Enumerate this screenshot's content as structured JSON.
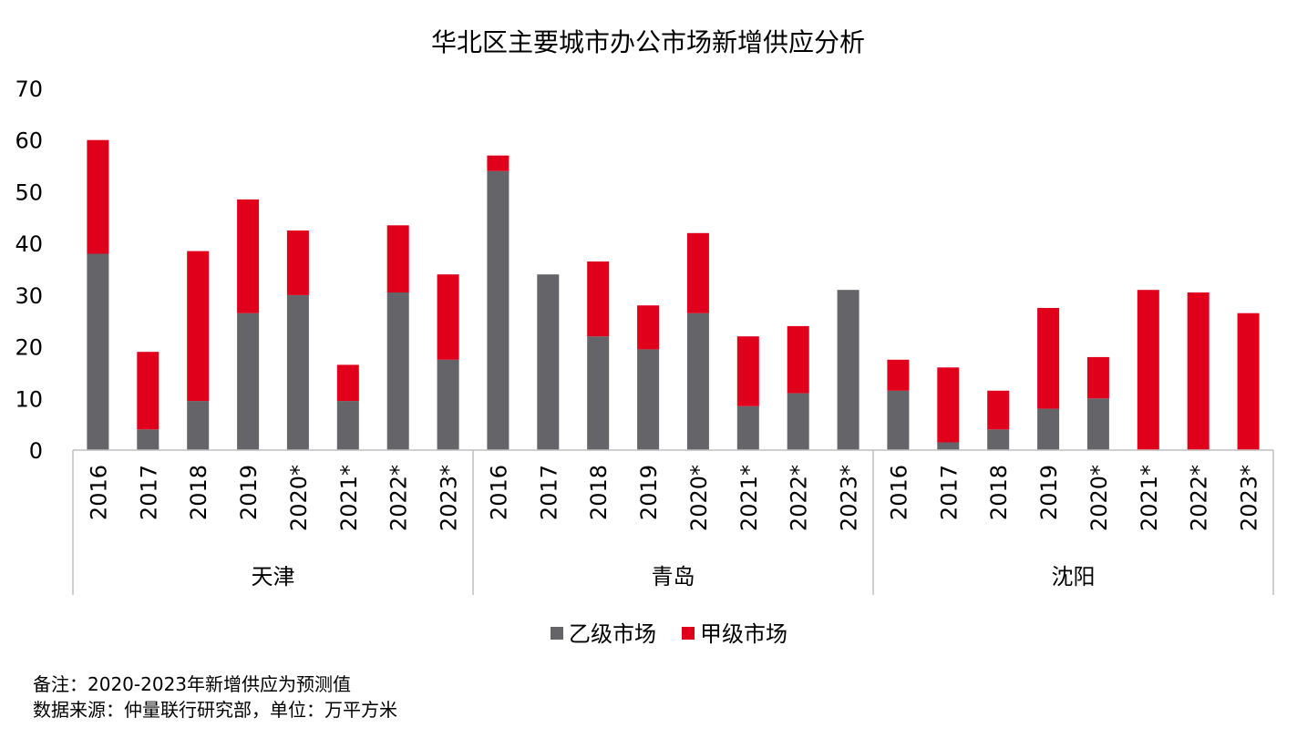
{
  "chart_data": {
    "type": "bar",
    "stacked": true,
    "title": "华北区主要城市办公市场新增供应分析",
    "xlabel": "",
    "ylabel": "",
    "ylim": [
      0,
      70
    ],
    "yticks": [
      0,
      10,
      20,
      30,
      40,
      50,
      60,
      70
    ],
    "grid": false,
    "legend_position": "bottom",
    "groups": [
      {
        "name": "天津",
        "categories": [
          "2016",
          "2017",
          "2018",
          "2019",
          "2020*",
          "2021*",
          "2022*",
          "2023*"
        ]
      },
      {
        "name": "青岛",
        "categories": [
          "2016",
          "2017",
          "2018",
          "2019",
          "2020*",
          "2021*",
          "2022*",
          "2023*"
        ]
      },
      {
        "name": "沈阳",
        "categories": [
          "2016",
          "2017",
          "2018",
          "2019",
          "2020*",
          "2021*",
          "2022*",
          "2023*"
        ]
      }
    ],
    "series": [
      {
        "name": "乙级市场",
        "color": "#646469",
        "values": [
          38,
          4,
          9.5,
          26.5,
          30,
          9.5,
          30.5,
          17.5,
          54,
          34,
          22,
          19.5,
          26.5,
          8.5,
          11,
          31,
          11.5,
          1.5,
          4,
          8,
          10,
          0,
          0,
          0
        ]
      },
      {
        "name": "甲级市场",
        "color": "#e0001b",
        "values": [
          22,
          15,
          29,
          22,
          12.5,
          7,
          13,
          16.5,
          3,
          0,
          14.5,
          8.5,
          15.5,
          13.5,
          13,
          0,
          6,
          14.5,
          7.5,
          19.5,
          8,
          31,
          30.5,
          26.5
        ]
      }
    ]
  },
  "notes": {
    "line1": "备注：2020-2023年新增供应为预测值",
    "line2": "数据来源：仲量联行研究部，单位：万平方米"
  }
}
